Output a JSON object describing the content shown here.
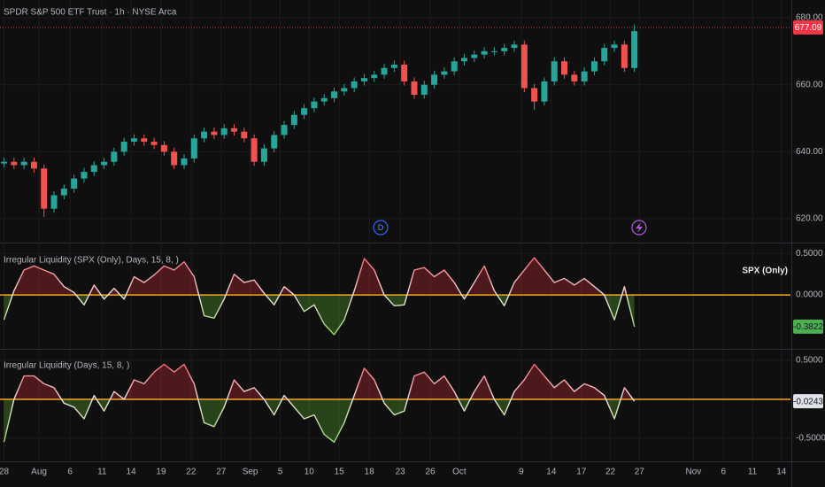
{
  "chart_data": [
    {
      "type": "candlestick",
      "title": "SPDR S&P 500 ETF Trust · 1h · NYSE Arca",
      "x": [
        0,
        1,
        2,
        3,
        4,
        5,
        6,
        7,
        8,
        9,
        10,
        11,
        12,
        13,
        14,
        15,
        16,
        17,
        18,
        19,
        20,
        21,
        22,
        23,
        24,
        25,
        26,
        27,
        28,
        29,
        30,
        31,
        32,
        33,
        34,
        35,
        36,
        37,
        38,
        39,
        40,
        41,
        42,
        43,
        44,
        45,
        46,
        47,
        48,
        49,
        50,
        51,
        52,
        53,
        54,
        55,
        56,
        57,
        58,
        59,
        60,
        61,
        62,
        63
      ],
      "open": [
        636.5,
        637,
        636,
        637,
        635,
        623,
        627,
        629,
        632,
        634,
        636,
        637,
        640,
        643,
        644,
        643,
        642,
        640,
        636,
        638,
        644,
        646,
        645,
        647,
        646,
        644,
        637,
        641,
        645,
        648,
        651,
        653,
        655,
        656,
        658,
        659,
        661,
        662,
        663,
        665,
        666,
        661,
        657,
        660,
        663,
        664,
        667,
        668,
        669,
        670,
        670,
        671,
        672,
        659,
        655,
        661,
        667,
        663,
        661,
        664,
        667,
        671,
        672,
        665
      ],
      "high": [
        638.2,
        638.2,
        638.2,
        638.2,
        636.2,
        628.2,
        630.2,
        633.2,
        635.2,
        637.2,
        638.2,
        641.2,
        644.2,
        645.2,
        645.2,
        644.2,
        643.2,
        641.2,
        639.2,
        645.2,
        647.2,
        647.2,
        648.2,
        648.2,
        647.2,
        645.2,
        642.2,
        646.2,
        649.2,
        652.2,
        654.2,
        656.2,
        657.2,
        659.2,
        660.2,
        662.2,
        663.2,
        664.2,
        666.2,
        667.2,
        667.2,
        662.2,
        661.2,
        664.2,
        665.2,
        668.2,
        669.2,
        670.2,
        671.2,
        671.2,
        672.2,
        673.2,
        673.2,
        660.2,
        662.2,
        668.2,
        668.2,
        664.2,
        665.2,
        668.2,
        672.2,
        673.2,
        673.2,
        678
      ],
      "low": [
        635.3,
        634.8,
        634.8,
        633.8,
        620.5,
        621.8,
        625.8,
        627.8,
        630.8,
        632.8,
        634.8,
        635.8,
        638.8,
        641.8,
        641.8,
        640.8,
        638.8,
        634.8,
        634.8,
        636.8,
        642.8,
        643.8,
        643.8,
        644.8,
        642.8,
        635.8,
        635.8,
        639.8,
        643.8,
        646.8,
        649.8,
        651.8,
        653.8,
        654.8,
        656.8,
        657.8,
        659.8,
        660.8,
        661.8,
        663.8,
        659.8,
        655.8,
        655.8,
        658.8,
        661.8,
        662.8,
        665.8,
        666.8,
        667.8,
        668.8,
        668.8,
        669.8,
        657.8,
        652.5,
        653.8,
        659.8,
        661.8,
        659.8,
        659.8,
        662.8,
        665.8,
        669.8,
        663.8,
        663.8
      ],
      "close": [
        637,
        636,
        637,
        635,
        623,
        627,
        629,
        632,
        634,
        636,
        637,
        640,
        643,
        644,
        643,
        642,
        640,
        636,
        638,
        644,
        646,
        645,
        647,
        646,
        644,
        637,
        641,
        645,
        648,
        651,
        653,
        655,
        656,
        658,
        659,
        661,
        662,
        663,
        665,
        666,
        661,
        657,
        660,
        663,
        664,
        667,
        668,
        669,
        670,
        670,
        671,
        672,
        659,
        655,
        661,
        667,
        663,
        661,
        664,
        667,
        671,
        672,
        665,
        676
      ],
      "up_color": "#26a69a",
      "down_color": "#ef5350",
      "xlim": [
        -0.4,
        78.6
      ],
      "ylim": [
        613.4,
        685.3
      ],
      "yticks": [
        {
          "value": 620,
          "label": "620.00"
        },
        {
          "value": 640,
          "label": "640.00"
        },
        {
          "value": 660,
          "label": "660.00"
        },
        {
          "value": 680,
          "label": "680.00"
        }
      ],
      "last_price": 677.09,
      "last_price_color": "#f23645",
      "annotations": [
        "D"
      ]
    },
    {
      "type": "line",
      "title": "Irregular Liquidity (SPX (Only), Days, 15, 8, )",
      "series_label": "SPX (Only)",
      "x": [
        0,
        1,
        2,
        3,
        4,
        5,
        6,
        7,
        8,
        9,
        10,
        11,
        12,
        13,
        14,
        15,
        16,
        17,
        18,
        19,
        20,
        21,
        22,
        23,
        24,
        25,
        26,
        27,
        28,
        29,
        30,
        31,
        32,
        33,
        34,
        35,
        36,
        37,
        38,
        39,
        40,
        41,
        42,
        43,
        44,
        45,
        46,
        47,
        48,
        49,
        50,
        51,
        52,
        53,
        54,
        55,
        56,
        57,
        58,
        59,
        60,
        61,
        62,
        63
      ],
      "values": [
        -0.3,
        0.05,
        0.3,
        0.35,
        0.3,
        0.25,
        0.1,
        0.03,
        -0.12,
        0.12,
        -0.05,
        0.08,
        -0.05,
        0.22,
        0.15,
        0.24,
        0.35,
        0.3,
        0.4,
        0.22,
        -0.25,
        -0.28,
        -0.05,
        0.25,
        0.15,
        0.18,
        0.02,
        -0.12,
        0.1,
        0.0,
        -0.2,
        -0.12,
        -0.35,
        -0.48,
        -0.3,
        0.05,
        0.44,
        0.3,
        0.0,
        -0.13,
        -0.12,
        0.3,
        0.33,
        0.22,
        0.3,
        0.15,
        -0.05,
        0.15,
        0.35,
        0.05,
        -0.13,
        0.15,
        0.3,
        0.45,
        0.3,
        0.15,
        0.2,
        0.12,
        0.2,
        0.1,
        0.0,
        -0.3,
        0.1,
        -0.3822
      ],
      "up_color": "#f23645",
      "down_color": "#6fcf3a",
      "mid_color": "#f2e4e2",
      "zero_color": "#f5a623",
      "last_label_color": "#4caf50",
      "xlim": [
        -0.4,
        78.6
      ],
      "ylim": [
        -0.64,
        0.61
      ],
      "yticks": [
        {
          "value": 0.5,
          "label": "0.5000"
        },
        {
          "value": 0,
          "label": "0.0000"
        }
      ]
    },
    {
      "type": "line",
      "title": "Irregular Liquidity (Days, 15, 8, )",
      "x": [
        0,
        1,
        2,
        3,
        4,
        5,
        6,
        7,
        8,
        9,
        10,
        11,
        12,
        13,
        14,
        15,
        16,
        17,
        18,
        19,
        20,
        21,
        22,
        23,
        24,
        25,
        26,
        27,
        28,
        29,
        30,
        31,
        32,
        33,
        34,
        35,
        36,
        37,
        38,
        39,
        40,
        41,
        42,
        43,
        44,
        45,
        46,
        47,
        48,
        49,
        50,
        51,
        52,
        53,
        54,
        55,
        56,
        57,
        58,
        59,
        60,
        61,
        62,
        63
      ],
      "values": [
        -0.55,
        0.0,
        0.3,
        0.3,
        0.2,
        0.15,
        -0.05,
        -0.1,
        -0.25,
        0.05,
        -0.15,
        0.1,
        0.0,
        0.25,
        0.2,
        0.35,
        0.45,
        0.35,
        0.45,
        0.2,
        -0.3,
        -0.35,
        -0.1,
        0.25,
        0.1,
        0.15,
        0.0,
        -0.2,
        0.05,
        -0.1,
        -0.25,
        -0.2,
        -0.45,
        -0.55,
        -0.3,
        0.05,
        0.4,
        0.25,
        -0.05,
        -0.2,
        -0.15,
        0.3,
        0.35,
        0.2,
        0.3,
        0.1,
        -0.15,
        0.1,
        0.3,
        0.0,
        -0.2,
        0.1,
        0.25,
        0.45,
        0.3,
        0.15,
        0.25,
        0.1,
        0.2,
        0.15,
        0.05,
        -0.25,
        0.15,
        -0.0243
      ],
      "up_color": "#f23645",
      "down_color": "#6fcf3a",
      "mid_color": "#f2e4e2",
      "zero_color": "#f5a623",
      "last_label_color": "#e0e3eb",
      "xlim": [
        -0.4,
        78.6
      ],
      "ylim": [
        -0.784,
        0.625
      ],
      "yticks": [
        {
          "value": 0.5,
          "label": "0.5000"
        },
        {
          "value": -0.5,
          "label": "-0.5000"
        }
      ],
      "xticks": [
        {
          "value": 0,
          "label": "28"
        },
        {
          "value": 3.5,
          "label": "Aug"
        },
        {
          "value": 6.6,
          "label": "6"
        },
        {
          "value": 9.8,
          "label": "11"
        },
        {
          "value": 12.7,
          "label": "14"
        },
        {
          "value": 15.7,
          "label": "19"
        },
        {
          "value": 18.7,
          "label": "22"
        },
        {
          "value": 21.7,
          "label": "27"
        },
        {
          "value": 24.6,
          "label": "Sep"
        },
        {
          "value": 27.6,
          "label": "5"
        },
        {
          "value": 30.5,
          "label": "10"
        },
        {
          "value": 33.5,
          "label": "15"
        },
        {
          "value": 36.5,
          "label": "18"
        },
        {
          "value": 39.6,
          "label": "23"
        },
        {
          "value": 42.6,
          "label": "26"
        },
        {
          "value": 45.5,
          "label": "Oct"
        },
        {
          "value": 51.7,
          "label": "9"
        },
        {
          "value": 54.7,
          "label": "14"
        },
        {
          "value": 57.7,
          "label": "17"
        },
        {
          "value": 60.6,
          "label": "22"
        },
        {
          "value": 63.5,
          "label": "27"
        },
        {
          "value": 68.9,
          "label": "Nov"
        },
        {
          "value": 71.9,
          "label": "6"
        },
        {
          "value": 74.8,
          "label": "11"
        },
        {
          "value": 77.7,
          "label": "14"
        }
      ]
    }
  ]
}
